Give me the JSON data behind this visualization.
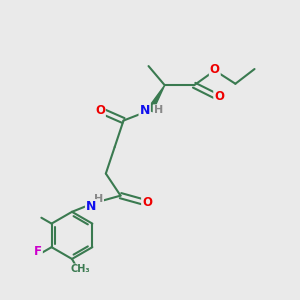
{
  "background_color": "#eaeaea",
  "bond_color": "#3a7a50",
  "bond_width": 1.5,
  "atom_colors": {
    "O": "#ee0000",
    "N": "#1010ee",
    "F": "#cc00cc",
    "H": "#888888",
    "C": "#3a7a50"
  },
  "figsize": [
    3.0,
    3.0
  ],
  "dpi": 100
}
